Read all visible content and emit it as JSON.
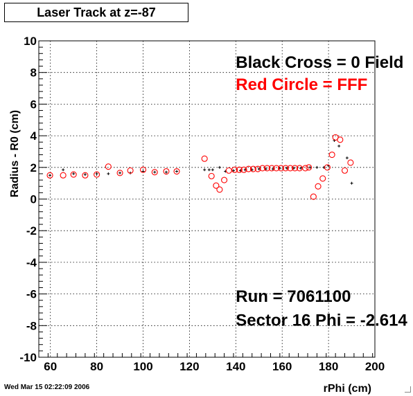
{
  "chart_data": {
    "type": "scatter",
    "title": "Laser Track at z=-87",
    "xlabel": "rPhi (cm)",
    "ylabel": "Radius - R0 (cm)",
    "xlim": [
      55,
      200
    ],
    "ylim": [
      -10,
      10
    ],
    "x_ticks": [
      60,
      80,
      100,
      120,
      140,
      160,
      180,
      200
    ],
    "y_ticks": [
      -10,
      -8,
      -6,
      -4,
      -2,
      0,
      2,
      4,
      6,
      8,
      10
    ],
    "grid": true,
    "series": [
      {
        "name": "Black Cross  = 0 Field",
        "marker": "cross",
        "color": "#000000",
        "points": [
          [
            59.8,
            1.5
          ],
          [
            65.5,
            1.85
          ],
          [
            70,
            1.6
          ],
          [
            75,
            1.55
          ],
          [
            80,
            1.6
          ],
          [
            85,
            1.6
          ],
          [
            90,
            1.65
          ],
          [
            94.5,
            1.65
          ],
          [
            100,
            1.75
          ],
          [
            105,
            1.7
          ],
          [
            110,
            1.7
          ],
          [
            114.5,
            1.75
          ],
          [
            126.5,
            1.85
          ],
          [
            128.5,
            1.85
          ],
          [
            130,
            1.85
          ],
          [
            133,
            2.0
          ],
          [
            135.5,
            1.75
          ],
          [
            139,
            1.8
          ],
          [
            142,
            1.8
          ],
          [
            144,
            1.85
          ],
          [
            147,
            1.85
          ],
          [
            150,
            1.9
          ],
          [
            153,
            1.9
          ],
          [
            156,
            1.9
          ],
          [
            159,
            1.95
          ],
          [
            162,
            1.95
          ],
          [
            165,
            1.95
          ],
          [
            168,
            1.95
          ],
          [
            172,
            2.0
          ],
          [
            175,
            2.0
          ],
          [
            178,
            2.0
          ],
          [
            180,
            2.1
          ],
          [
            182.5,
            3.7
          ],
          [
            184.5,
            3.35
          ],
          [
            188,
            2.6
          ],
          [
            190,
            1.0
          ]
        ]
      },
      {
        "name": "Red Circle = FFF",
        "marker": "circle",
        "color": "#ff0000",
        "points": [
          [
            59.8,
            1.5
          ],
          [
            65.5,
            1.5
          ],
          [
            70,
            1.55
          ],
          [
            75,
            1.5
          ],
          [
            80,
            1.55
          ],
          [
            85,
            2.05
          ],
          [
            90,
            1.65
          ],
          [
            94.5,
            1.8
          ],
          [
            100,
            1.85
          ],
          [
            105,
            1.7
          ],
          [
            110,
            1.75
          ],
          [
            114.5,
            1.75
          ],
          [
            126.5,
            2.55
          ],
          [
            129.5,
            1.45
          ],
          [
            131.5,
            0.85
          ],
          [
            133,
            0.6
          ],
          [
            135,
            1.2
          ],
          [
            137,
            1.8
          ],
          [
            139.5,
            1.85
          ],
          [
            141.5,
            1.85
          ],
          [
            143.5,
            1.85
          ],
          [
            145.5,
            1.9
          ],
          [
            147.5,
            1.9
          ],
          [
            149.5,
            1.9
          ],
          [
            151.5,
            1.95
          ],
          [
            153.5,
            1.95
          ],
          [
            155.5,
            1.95
          ],
          [
            157.5,
            1.95
          ],
          [
            159.5,
            1.95
          ],
          [
            161.5,
            1.95
          ],
          [
            163.5,
            1.95
          ],
          [
            165.5,
            1.95
          ],
          [
            167.5,
            1.95
          ],
          [
            170,
            1.95
          ],
          [
            171.5,
            2.0
          ],
          [
            173.5,
            0.15
          ],
          [
            175.5,
            0.8
          ],
          [
            177.5,
            1.3
          ],
          [
            179.5,
            2.0
          ],
          [
            181.5,
            2.8
          ],
          [
            183,
            3.9
          ],
          [
            185,
            3.75
          ],
          [
            187,
            1.8
          ],
          [
            189.5,
            2.3
          ]
        ]
      }
    ],
    "annotations": [
      {
        "text": "Black Cross  = 0 Field",
        "color": "#000000",
        "x": 140,
        "y": 8.3
      },
      {
        "text": "Red Circle = FFF",
        "color": "#ff0000",
        "x": 140,
        "y": 6.9
      },
      {
        "text": "Run = 7061100",
        "color": "#000000",
        "x": 140,
        "y": -6.5
      },
      {
        "text": "Sector 16 Phi = -2.614",
        "color": "#000000",
        "x": 140,
        "y": -8.0
      }
    ]
  },
  "footer": {
    "timestamp": "Wed Mar 15 02:22:09 2006"
  }
}
